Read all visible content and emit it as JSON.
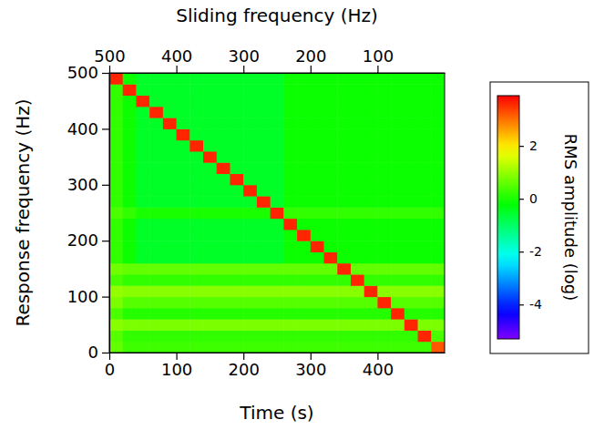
{
  "chart_data": {
    "type": "heatmap",
    "xlabel": "Time (s)",
    "ylabel": "Response frequency (Hz)",
    "x2label": "Sliding frequency (Hz)",
    "xlim": [
      0,
      500
    ],
    "xticks": [
      0,
      100,
      200,
      300,
      400
    ],
    "x2lim": [
      500,
      0
    ],
    "x2ticks": [
      500,
      400,
      300,
      200,
      100
    ],
    "ylim": [
      0,
      500
    ],
    "yticks": [
      0,
      100,
      200,
      300,
      400,
      500
    ],
    "x_bins": [
      0,
      20,
      40,
      60,
      80,
      100,
      120,
      140,
      160,
      180,
      200,
      220,
      240,
      260,
      280,
      300,
      320,
      340,
      360,
      380,
      400,
      420,
      440,
      460,
      480,
      500
    ],
    "y_bins": [
      0,
      20,
      40,
      60,
      80,
      100,
      120,
      140,
      160,
      180,
      200,
      220,
      240,
      260,
      280,
      300,
      320,
      340,
      360,
      380,
      400,
      420,
      440,
      460,
      480,
      500
    ],
    "z": [
      [
        0.6,
        0.3,
        0.3,
        0.3,
        0.3,
        0.3,
        0.3,
        0.3,
        0.3,
        0.3,
        0.3,
        0.3,
        0.3,
        0.3,
        0.3,
        0.3,
        0.3,
        0.3,
        0.3,
        0.3,
        0.3,
        0.3,
        0.3,
        0.3,
        3.2
      ],
      [
        0.5,
        0.2,
        0.2,
        0.2,
        0.2,
        0.2,
        0.2,
        0.2,
        0.2,
        0.2,
        0.2,
        0.2,
        0.2,
        0.2,
        0.2,
        0.2,
        0.2,
        0.2,
        0.2,
        0.2,
        0.2,
        0.2,
        0.2,
        3.6,
        0.4
      ],
      [
        0.9,
        0.8,
        0.8,
        0.8,
        0.8,
        0.8,
        0.8,
        0.8,
        0.8,
        0.8,
        0.8,
        0.8,
        0.8,
        0.8,
        0.8,
        0.8,
        0.8,
        0.8,
        0.8,
        0.8,
        0.8,
        0.8,
        3.6,
        0.8,
        0.8
      ],
      [
        0.4,
        0.1,
        0.1,
        0.1,
        0.1,
        0.1,
        0.1,
        0.1,
        0.1,
        0.1,
        0.1,
        0.1,
        0.1,
        0.1,
        0.1,
        0.1,
        0.1,
        0.1,
        0.1,
        0.1,
        0.1,
        3.6,
        0.1,
        0.1,
        0.1
      ],
      [
        0.8,
        0.5,
        0.5,
        0.5,
        0.5,
        0.5,
        0.5,
        0.5,
        0.5,
        0.5,
        0.5,
        0.5,
        0.5,
        0.5,
        0.5,
        0.5,
        0.5,
        0.5,
        0.5,
        0.5,
        3.6,
        0.5,
        0.5,
        0.5,
        0.5
      ],
      [
        1.0,
        0.9,
        0.9,
        0.9,
        0.9,
        0.9,
        0.9,
        0.9,
        0.9,
        0.9,
        0.9,
        0.9,
        0.9,
        0.9,
        0.9,
        0.9,
        0.9,
        0.9,
        0.9,
        3.6,
        0.9,
        0.9,
        0.9,
        0.9,
        0.9
      ],
      [
        0.4,
        0.2,
        0.2,
        0.2,
        0.2,
        0.2,
        0.2,
        0.2,
        0.2,
        0.2,
        0.2,
        0.2,
        0.2,
        0.2,
        0.2,
        0.2,
        0.2,
        0.2,
        3.6,
        0.2,
        0.2,
        0.2,
        0.2,
        0.2,
        0.2
      ],
      [
        0.7,
        0.6,
        0.6,
        0.6,
        0.6,
        0.6,
        0.6,
        0.6,
        0.6,
        0.6,
        0.6,
        0.6,
        0.6,
        0.6,
        0.6,
        0.6,
        0.6,
        3.6,
        0.6,
        0.6,
        0.6,
        0.6,
        0.6,
        0.6,
        0.6
      ],
      [
        0.2,
        -0.1,
        -0.5,
        -0.5,
        -0.5,
        -0.5,
        -0.5,
        -0.5,
        -0.5,
        -0.5,
        -0.5,
        -0.5,
        -0.5,
        -0.1,
        -0.1,
        -0.1,
        3.6,
        -0.1,
        -0.1,
        -0.1,
        -0.1,
        -0.1,
        -0.1,
        -0.1,
        -0.1
      ],
      [
        0.2,
        -0.1,
        -0.5,
        -0.5,
        -0.5,
        -0.5,
        -0.5,
        -0.5,
        -0.5,
        -0.5,
        -0.5,
        -0.5,
        -0.5,
        -0.1,
        -0.1,
        3.6,
        -0.1,
        -0.1,
        -0.1,
        -0.1,
        -0.1,
        -0.1,
        -0.1,
        -0.1,
        -0.1
      ],
      [
        0.2,
        -0.1,
        -0.5,
        -0.5,
        -0.5,
        -0.5,
        -0.5,
        -0.5,
        -0.5,
        -0.5,
        -0.5,
        -0.5,
        -0.5,
        -0.1,
        3.6,
        -0.1,
        -0.1,
        -0.1,
        -0.1,
        -0.1,
        -0.1,
        -0.1,
        -0.1,
        -0.1,
        -0.1
      ],
      [
        0.2,
        -0.1,
        -0.5,
        -0.5,
        -0.5,
        -0.5,
        -0.5,
        -0.5,
        -0.5,
        -0.5,
        -0.5,
        -0.5,
        -0.5,
        3.6,
        -0.1,
        -0.1,
        -0.1,
        -0.1,
        -0.1,
        -0.1,
        -0.1,
        -0.1,
        -0.1,
        -0.1,
        -0.1
      ],
      [
        0.4,
        0.2,
        0.0,
        0.0,
        0.0,
        0.0,
        0.0,
        0.0,
        0.0,
        0.0,
        0.0,
        0.0,
        3.6,
        0.2,
        0.2,
        0.2,
        0.2,
        0.2,
        0.2,
        0.2,
        0.2,
        0.2,
        0.2,
        0.2,
        0.2
      ],
      [
        0.2,
        -0.1,
        -0.5,
        -0.5,
        -0.5,
        -0.5,
        -0.5,
        -0.5,
        -0.5,
        -0.5,
        -0.5,
        3.6,
        -0.5,
        -0.1,
        -0.1,
        -0.1,
        -0.1,
        -0.1,
        -0.1,
        -0.1,
        -0.1,
        -0.1,
        -0.1,
        -0.1,
        -0.1
      ],
      [
        0.2,
        -0.1,
        -0.5,
        -0.5,
        -0.5,
        -0.5,
        -0.5,
        -0.5,
        -0.5,
        -0.5,
        3.6,
        -0.5,
        -0.5,
        -0.1,
        -0.1,
        -0.1,
        -0.1,
        -0.1,
        -0.1,
        -0.1,
        -0.1,
        -0.1,
        -0.1,
        -0.1,
        -0.1
      ],
      [
        0.2,
        -0.1,
        -0.5,
        -0.5,
        -0.5,
        -0.5,
        -0.5,
        -0.5,
        -0.5,
        3.6,
        -0.5,
        -0.5,
        -0.5,
        -0.1,
        -0.1,
        -0.1,
        -0.1,
        -0.1,
        -0.1,
        -0.1,
        -0.1,
        -0.1,
        -0.1,
        -0.1,
        -0.1
      ],
      [
        0.2,
        -0.1,
        -0.5,
        -0.5,
        -0.5,
        -0.5,
        -0.5,
        -0.5,
        3.6,
        -0.5,
        -0.5,
        -0.5,
        -0.5,
        -0.1,
        -0.1,
        -0.1,
        -0.1,
        -0.1,
        -0.1,
        -0.1,
        -0.1,
        -0.1,
        -0.1,
        -0.1,
        -0.1
      ],
      [
        0.2,
        -0.1,
        -0.5,
        -0.5,
        -0.5,
        -0.5,
        -0.5,
        3.6,
        -0.5,
        -0.5,
        -0.5,
        -0.5,
        -0.5,
        -0.1,
        -0.1,
        -0.1,
        -0.1,
        -0.1,
        -0.1,
        -0.1,
        -0.1,
        -0.1,
        -0.1,
        -0.1,
        -0.1
      ],
      [
        0.2,
        -0.1,
        -0.5,
        -0.5,
        -0.5,
        -0.5,
        3.6,
        -0.5,
        -0.5,
        -0.5,
        -0.5,
        -0.5,
        -0.5,
        -0.1,
        -0.1,
        -0.1,
        -0.1,
        -0.1,
        -0.1,
        -0.1,
        -0.1,
        -0.1,
        -0.1,
        -0.1,
        -0.1
      ],
      [
        0.2,
        -0.1,
        -0.5,
        -0.5,
        -0.5,
        3.6,
        -0.5,
        -0.5,
        -0.5,
        -0.5,
        -0.5,
        -0.5,
        -0.5,
        -0.1,
        -0.1,
        -0.1,
        -0.1,
        -0.1,
        -0.1,
        -0.1,
        -0.1,
        -0.1,
        -0.1,
        -0.1,
        -0.1
      ],
      [
        0.2,
        -0.1,
        -0.5,
        -0.5,
        3.6,
        -0.5,
        -0.5,
        -0.5,
        -0.5,
        -0.5,
        -0.5,
        -0.5,
        -0.5,
        -0.1,
        -0.1,
        -0.1,
        -0.1,
        -0.1,
        -0.1,
        -0.1,
        -0.1,
        -0.1,
        -0.1,
        -0.1,
        -0.1
      ],
      [
        0.2,
        -0.1,
        -0.5,
        3.6,
        -0.5,
        -0.5,
        -0.5,
        -0.5,
        -0.5,
        -0.5,
        -0.5,
        -0.5,
        -0.5,
        -0.1,
        -0.1,
        -0.1,
        -0.1,
        -0.1,
        -0.1,
        -0.1,
        -0.1,
        -0.1,
        -0.1,
        -0.1,
        -0.1
      ],
      [
        0.2,
        -0.1,
        3.6,
        -0.5,
        -0.5,
        -0.5,
        -0.5,
        -0.5,
        -0.5,
        -0.5,
        -0.5,
        -0.5,
        -0.5,
        -0.1,
        -0.1,
        -0.1,
        -0.1,
        -0.1,
        -0.1,
        -0.1,
        -0.1,
        -0.1,
        -0.1,
        -0.1,
        -0.1
      ],
      [
        0.2,
        3.6,
        -0.5,
        -0.5,
        -0.5,
        -0.5,
        -0.5,
        -0.5,
        -0.5,
        -0.5,
        -0.5,
        -0.5,
        -0.5,
        -0.1,
        -0.1,
        -0.1,
        -0.1,
        -0.1,
        -0.1,
        -0.1,
        -0.1,
        -0.1,
        -0.1,
        -0.1,
        -0.1
      ],
      [
        3.6,
        -0.1,
        -0.5,
        -0.5,
        -0.5,
        -0.5,
        -0.5,
        -0.5,
        -0.5,
        -0.5,
        -0.5,
        -0.5,
        -0.5,
        -0.1,
        -0.1,
        -0.1,
        -0.1,
        -0.1,
        -0.1,
        -0.1,
        -0.1,
        -0.1,
        -0.1,
        -0.1,
        -0.1
      ]
    ],
    "colorbar": {
      "label": "RMS amplitude (log)",
      "lim": [
        -5.3,
        3.9
      ],
      "ticks": [
        2,
        0,
        -2,
        -4
      ]
    }
  }
}
